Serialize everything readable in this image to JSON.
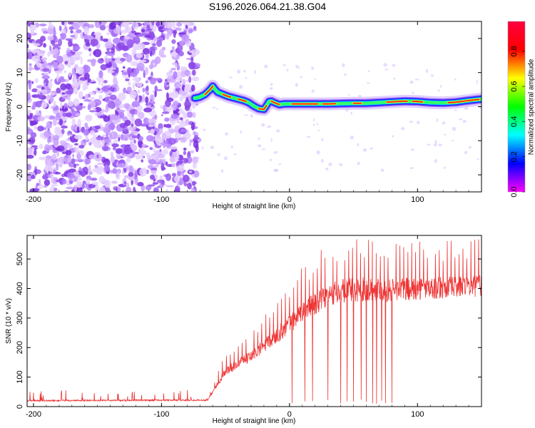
{
  "title": "S196.2026.064.21.38.G04",
  "chart_data": [
    {
      "type": "heatmap",
      "name": "spectrogram",
      "xlabel": "Height of straight line (km)",
      "ylabel": "Frequency (Hz)",
      "xlim": [
        -205,
        150
      ],
      "ylim": [
        -25,
        25
      ],
      "xticks": [
        -200,
        -100,
        0,
        100
      ],
      "yticks": [
        -20,
        -10,
        0,
        10,
        20
      ],
      "colorbar": {
        "label": "Normalized spectral amplitude",
        "range": [
          0,
          0.97
        ],
        "ticks": [
          0.0,
          0.2,
          0.4,
          0.6,
          0.8
        ],
        "tick_labels": [
          "0.0",
          "0.2",
          "0.4",
          "0.6",
          "0.8"
        ],
        "colormap": [
          "#ff00ff",
          "#0000ff",
          "#00ffff",
          "#00ff00",
          "#ffff00",
          "#ff0000",
          "#ff0040"
        ]
      },
      "noise_region_x": [
        -205,
        -72
      ],
      "ridge": {
        "x": [
          -74,
          -70,
          -66,
          -62,
          -60,
          -58,
          -56,
          -52,
          -48,
          -44,
          -40,
          -36,
          -32,
          -28,
          -24,
          -20,
          -18,
          -16,
          -14,
          -12,
          -8,
          -4,
          0,
          10,
          20,
          30,
          40,
          50,
          60,
          70,
          80,
          90,
          100,
          110,
          120,
          130,
          140,
          150
        ],
        "freq": [
          2.5,
          2.8,
          3.6,
          5.0,
          6.0,
          5.0,
          4.2,
          3.6,
          3.0,
          2.6,
          2.2,
          1.8,
          1.2,
          0.2,
          -0.6,
          -0.8,
          0.3,
          1.5,
          1.6,
          1.2,
          0.6,
          0.8,
          0.8,
          0.8,
          0.8,
          0.8,
          0.9,
          1.0,
          1.0,
          1.2,
          1.4,
          1.6,
          1.5,
          1.2,
          1.1,
          1.3,
          1.8,
          2.2
        ]
      }
    },
    {
      "type": "line",
      "name": "snr",
      "xlabel": "Height of straight line (km)",
      "ylabel": "SNR (10 * v/v)",
      "xlim": [
        -205,
        150
      ],
      "ylim": [
        0,
        580
      ],
      "xticks": [
        -200,
        -100,
        0,
        100
      ],
      "yticks": [
        0,
        100,
        200,
        300,
        400,
        500
      ],
      "color": "#ee3333",
      "trend_x": [
        -205,
        -64,
        -50,
        -30,
        -10,
        0,
        10,
        20,
        30,
        40,
        60,
        80,
        100,
        120,
        150
      ],
      "trend_y": [
        20,
        22,
        120,
        170,
        240,
        280,
        320,
        350,
        375,
        390,
        400,
        395,
        400,
        402,
        410
      ],
      "spike_amplitude": [
        10,
        10,
        55,
        80,
        110,
        130,
        140,
        150,
        160,
        170,
        165,
        160,
        155,
        150,
        150
      ],
      "dropouts_x": [
        2,
        12,
        18,
        30,
        40,
        45,
        50,
        56,
        60,
        65,
        68,
        72,
        75,
        80
      ]
    }
  ]
}
